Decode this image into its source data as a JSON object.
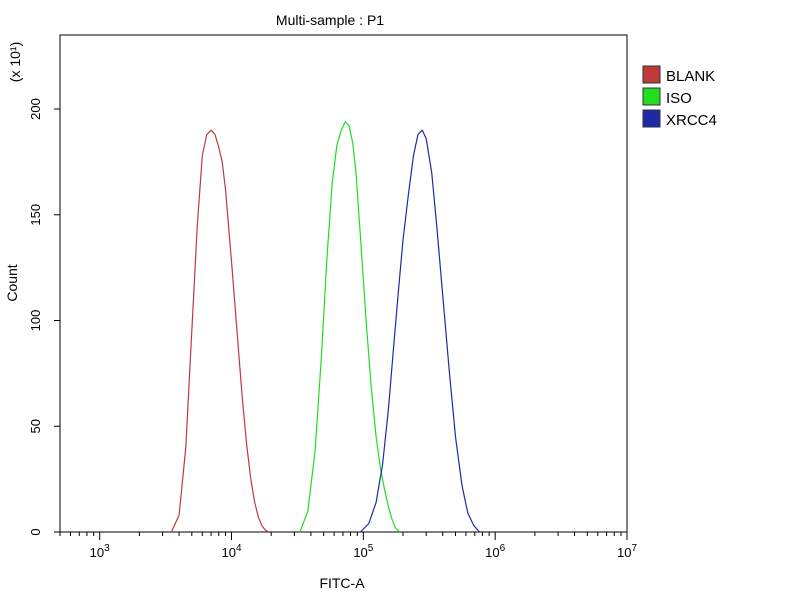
{
  "chart_data": {
    "type": "line",
    "title": "Multi-sample : P1",
    "xlabel": "FITC-A",
    "ylabel": "Count",
    "y_multiplier_label": "(x 10¹)",
    "x_scale": "log",
    "xlim": [
      500,
      10000000
    ],
    "ylim": [
      0,
      235
    ],
    "x_ticks": [
      {
        "value": 1000,
        "base": "10",
        "exp": "3"
      },
      {
        "value": 10000,
        "base": "10",
        "exp": "4"
      },
      {
        "value": 100000,
        "base": "10",
        "exp": "5"
      },
      {
        "value": 1000000,
        "base": "10",
        "exp": "6"
      },
      {
        "value": 10000000,
        "base": "10",
        "exp": "7"
      }
    ],
    "y_ticks": [
      0,
      50,
      100,
      150,
      200
    ],
    "legend_position": "top-right, outside plot",
    "grid": false,
    "series": [
      {
        "name": "BLANK",
        "color": "#c0393b",
        "x": [
          3500,
          4000,
          4500,
          5000,
          5500,
          6000,
          6500,
          7000,
          7500,
          8000,
          8500,
          9000,
          10000,
          11000,
          12000,
          13000,
          14000,
          15000,
          16000,
          17000,
          18000,
          19000
        ],
        "y": [
          0,
          8,
          40,
          95,
          145,
          178,
          188,
          190,
          188,
          182,
          175,
          162,
          128,
          95,
          65,
          42,
          25,
          14,
          7,
          3,
          1,
          0
        ]
      },
      {
        "name": "ISO",
        "color": "#22dd22",
        "x": [
          33000,
          38000,
          43000,
          48000,
          53000,
          58000,
          63000,
          68000,
          73000,
          78000,
          83000,
          88000,
          95000,
          105000,
          115000,
          125000,
          135000,
          145000,
          155000,
          165000,
          175000,
          190000
        ],
        "y": [
          0,
          10,
          38,
          82,
          130,
          165,
          183,
          190,
          194,
          192,
          184,
          170,
          140,
          100,
          68,
          45,
          30,
          20,
          12,
          6,
          2,
          0
        ]
      },
      {
        "name": "XRCC4",
        "color": "#1f2aa8",
        "x": [
          95000,
          110000,
          125000,
          140000,
          155000,
          170000,
          185000,
          200000,
          220000,
          240000,
          260000,
          280000,
          300000,
          330000,
          360000,
          400000,
          450000,
          500000,
          560000,
          620000,
          690000,
          760000
        ],
        "y": [
          0,
          4,
          14,
          32,
          58,
          88,
          115,
          138,
          160,
          178,
          188,
          190,
          186,
          170,
          145,
          112,
          75,
          45,
          22,
          9,
          3,
          0
        ]
      }
    ]
  }
}
